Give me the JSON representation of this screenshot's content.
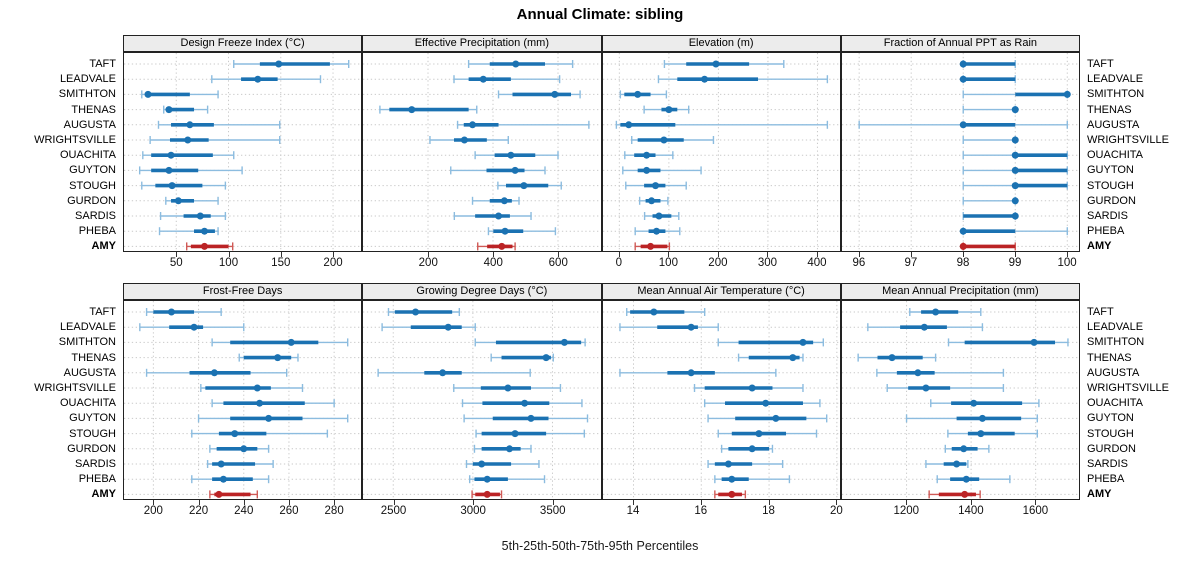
{
  "title": "Annual Climate: sibling",
  "footer": "5th-25th-50th-75th-95th Percentiles",
  "stations": [
    "TAFT",
    "LEADVALE",
    "SMITHTON",
    "THENAS",
    "AUGUSTA",
    "WRIGHTSVILLE",
    "OUACHITA",
    "GUYTON",
    "STOUGH",
    "GURDON",
    "SARDIS",
    "PHEBA",
    "AMY"
  ],
  "highlight_station": "AMY",
  "percentile_labels": [
    "5th",
    "25th",
    "50th",
    "75th",
    "95th"
  ],
  "colors": {
    "series_main": "#1b72b2",
    "series_whisker": "#8cbcdf",
    "highlight_main": "#bb2325",
    "highlight_whisker": "#d05a56",
    "strip_bg": "#ececec",
    "grid_line": "#c9c9c9",
    "panel_border": "#222222"
  },
  "chart_data": [
    {
      "type": "interval-dotplot",
      "title": "Design Freeze Index (°C)",
      "xlim": [
        0,
        227
      ],
      "ticks": [
        50,
        100,
        150,
        200
      ],
      "grid": "dotted",
      "values": {
        "TAFT": [
          105,
          130,
          148,
          197,
          215
        ],
        "LEADVALE": [
          84,
          112,
          128,
          147,
          188
        ],
        "SMITHTON": [
          17,
          20,
          23,
          63,
          90
        ],
        "THENAS": [
          38,
          41,
          43,
          67,
          80
        ],
        "AUGUSTA": [
          33,
          45,
          63,
          86,
          149
        ],
        "WRIGHTSVILLE": [
          25,
          44,
          61,
          81,
          149
        ],
        "OUACHITA": [
          18,
          26,
          45,
          85,
          105
        ],
        "GUYTON": [
          15,
          26,
          43,
          71,
          113
        ],
        "STOUGH": [
          17,
          30,
          46,
          75,
          97
        ],
        "GURDON": [
          40,
          45,
          52,
          67,
          90
        ],
        "SARDIS": [
          35,
          57,
          73,
          83,
          97
        ],
        "PHEBA": [
          34,
          67,
          77,
          87,
          90
        ],
        "AMY": [
          60,
          64,
          77,
          100,
          104
        ]
      }
    },
    {
      "type": "interval-dotplot",
      "title": "Effective Precipitation (mm)",
      "xlim": [
        0,
        730
      ],
      "ticks": [
        200,
        400,
        600
      ],
      "grid": "dotted",
      "values": {
        "TAFT": [
          325,
          390,
          470,
          560,
          645
        ],
        "LEADVALE": [
          280,
          325,
          370,
          455,
          605
        ],
        "SMITHTON": [
          417,
          460,
          590,
          640,
          668
        ],
        "THENAS": [
          52,
          81,
          150,
          325,
          350
        ],
        "AUGUSTA": [
          291,
          310,
          337,
          417,
          695
        ],
        "WRIGHTSVILLE": [
          206,
          280,
          312,
          381,
          447
        ],
        "OUACHITA": [
          345,
          405,
          455,
          530,
          600
        ],
        "GUYTON": [
          270,
          380,
          468,
          497,
          560
        ],
        "STOUGH": [
          415,
          440,
          495,
          570,
          610
        ],
        "GURDON": [
          337,
          390,
          435,
          458,
          480
        ],
        "SARDIS": [
          281,
          345,
          417,
          452,
          517
        ],
        "PHEBA": [
          386,
          401,
          437,
          493,
          592
        ],
        "AMY": [
          353,
          382,
          427,
          460,
          468
        ]
      }
    },
    {
      "type": "interval-dotplot",
      "title": "Elevation (m)",
      "xlim": [
        -33,
        446
      ],
      "ticks": [
        0,
        100,
        200,
        300,
        400
      ],
      "grid": "dotted",
      "values": {
        "TAFT": [
          91,
          135,
          195,
          262,
          332
        ],
        "LEADVALE": [
          79,
          117,
          172,
          280,
          420
        ],
        "SMITHTON": [
          2,
          10,
          37,
          63,
          95
        ],
        "THENAS": [
          50,
          85,
          100,
          117,
          140
        ],
        "AUGUSTA": [
          -6,
          2,
          19,
          113,
          420
        ],
        "WRIGHTSVILLE": [
          25,
          37,
          90,
          130,
          190
        ],
        "OUACHITA": [
          11,
          30,
          55,
          73,
          108
        ],
        "GUYTON": [
          7,
          37,
          55,
          83,
          165
        ],
        "STOUGH": [
          13,
          50,
          73,
          93,
          135
        ],
        "GURDON": [
          41,
          53,
          65,
          83,
          98
        ],
        "SARDIS": [
          51,
          67,
          80,
          105,
          120
        ],
        "PHEBA": [
          32,
          59,
          75,
          93,
          122
        ],
        "AMY": [
          32,
          43,
          63,
          97,
          101
        ]
      }
    },
    {
      "type": "interval-dotplot",
      "title": "Fraction of Annual PPT as Rain",
      "xlim": [
        95.67,
        100.23
      ],
      "ticks": [
        96,
        97,
        98,
        99,
        100
      ],
      "grid": "dotted",
      "values": {
        "TAFT": [
          98,
          98,
          98,
          99,
          99
        ],
        "LEADVALE": [
          98,
          98,
          98,
          99,
          99
        ],
        "SMITHTON": [
          98,
          99,
          100,
          100,
          100
        ],
        "THENAS": [
          98,
          99,
          99,
          99,
          99
        ],
        "AUGUSTA": [
          96,
          98,
          98,
          99,
          100
        ],
        "WRIGHTSVILLE": [
          98,
          99,
          99,
          99,
          99
        ],
        "OUACHITA": [
          98,
          99,
          99,
          100,
          100
        ],
        "GUYTON": [
          98,
          99,
          99,
          100,
          100
        ],
        "STOUGH": [
          98,
          99,
          99,
          100,
          100
        ],
        "GURDON": [
          98,
          99,
          99,
          99,
          99
        ],
        "SARDIS": [
          98,
          98,
          99,
          99,
          99
        ],
        "PHEBA": [
          98,
          98,
          98,
          99,
          100
        ],
        "AMY": [
          98,
          98,
          98,
          99,
          99
        ]
      }
    },
    {
      "type": "interval-dotplot",
      "title": "Frost-Free Days",
      "xlim": [
        187,
        292
      ],
      "ticks": [
        200,
        220,
        240,
        260,
        280
      ],
      "grid": "dotted",
      "values": {
        "TAFT": [
          197,
          200,
          208,
          218,
          230
        ],
        "LEADVALE": [
          194,
          207,
          218,
          222,
          240
        ],
        "SMITHTON": [
          226,
          234,
          261,
          273,
          286
        ],
        "THENAS": [
          238,
          240,
          255,
          261,
          264
        ],
        "AUGUSTA": [
          197,
          216,
          227,
          243,
          259
        ],
        "WRIGHTSVILLE": [
          221,
          223,
          246,
          252,
          266
        ],
        "OUACHITA": [
          226,
          231,
          247,
          267,
          280
        ],
        "GUYTON": [
          220,
          234,
          251,
          266,
          286
        ],
        "STOUGH": [
          217,
          229,
          236,
          250,
          277
        ],
        "GURDON": [
          225,
          228,
          240,
          246,
          251
        ],
        "SARDIS": [
          224,
          226,
          230,
          245,
          253
        ],
        "PHEBA": [
          217,
          226,
          231,
          244,
          251
        ],
        "AMY": [
          225,
          227,
          229,
          243,
          246
        ]
      }
    },
    {
      "type": "interval-dotplot",
      "title": "Growing Degree Days (°C)",
      "xlim": [
        2310,
        3800
      ],
      "ticks": [
        2500,
        3000,
        3500
      ],
      "grid": "dotted",
      "values": {
        "TAFT": [
          2470,
          2510,
          2640,
          2870,
          2915
        ],
        "LEADVALE": [
          2430,
          2610,
          2845,
          2930,
          3015
        ],
        "SMITHTON": [
          3015,
          3145,
          3575,
          3680,
          3705
        ],
        "THENAS": [
          3115,
          3180,
          3460,
          3490,
          3505
        ],
        "AUGUSTA": [
          2405,
          2695,
          2810,
          2930,
          3360
        ],
        "WRIGHTSVILLE": [
          2880,
          3050,
          3220,
          3365,
          3550
        ],
        "OUACHITA": [
          2935,
          3060,
          3325,
          3480,
          3685
        ],
        "GUYTON": [
          2945,
          3125,
          3365,
          3475,
          3720
        ],
        "STOUGH": [
          3020,
          3055,
          3265,
          3460,
          3700
        ],
        "GURDON": [
          3010,
          3055,
          3230,
          3300,
          3365
        ],
        "SARDIS": [
          2960,
          3000,
          3055,
          3240,
          3415
        ],
        "PHEBA": [
          2980,
          3010,
          3090,
          3220,
          3450
        ],
        "AMY": [
          2995,
          3015,
          3090,
          3170,
          3180
        ]
      }
    },
    {
      "type": "interval-dotplot",
      "title": "Mean Annual Air Temperature (°C)",
      "xlim": [
        13.1,
        20.1
      ],
      "ticks": [
        14,
        16,
        18,
        20
      ],
      "grid": "dotted",
      "values": {
        "TAFT": [
          13.8,
          13.9,
          14.6,
          15.5,
          16.1
        ],
        "LEADVALE": [
          13.6,
          14.7,
          15.7,
          15.9,
          16.5
        ],
        "SMITHTON": [
          16.5,
          17.1,
          19.0,
          19.3,
          19.6
        ],
        "THENAS": [
          17.1,
          17.4,
          18.7,
          18.9,
          19.0
        ],
        "AUGUSTA": [
          13.6,
          15.0,
          15.7,
          16.4,
          18.2
        ],
        "WRIGHTSVILLE": [
          15.8,
          16.1,
          17.5,
          18.1,
          19.0
        ],
        "OUACHITA": [
          16.1,
          16.7,
          17.9,
          19.0,
          19.5
        ],
        "GUYTON": [
          16.2,
          17.0,
          18.2,
          19.1,
          19.7
        ],
        "STOUGH": [
          16.5,
          16.9,
          17.7,
          18.5,
          19.4
        ],
        "GURDON": [
          16.6,
          16.8,
          17.5,
          18.0,
          18.1
        ],
        "SARDIS": [
          16.2,
          16.4,
          16.8,
          17.5,
          18.4
        ],
        "PHEBA": [
          16.4,
          16.6,
          16.9,
          17.4,
          18.6
        ],
        "AMY": [
          16.4,
          16.5,
          16.9,
          17.2,
          17.3
        ]
      }
    },
    {
      "type": "interval-dotplot",
      "title": "Mean Annual Precipitation (mm)",
      "xlim": [
        1000,
        1735
      ],
      "ticks": [
        1200,
        1400,
        1600
      ],
      "grid": "dotted",
      "values": {
        "TAFT": [
          1210,
          1245,
          1290,
          1360,
          1430
        ],
        "LEADVALE": [
          1080,
          1180,
          1255,
          1325,
          1435
        ],
        "SMITHTON": [
          1330,
          1380,
          1595,
          1660,
          1700
        ],
        "THENAS": [
          1050,
          1110,
          1155,
          1250,
          1290
        ],
        "AUGUSTA": [
          1108,
          1170,
          1235,
          1287,
          1500
        ],
        "WRIGHTSVILLE": [
          1140,
          1205,
          1260,
          1335,
          1500
        ],
        "OUACHITA": [
          1275,
          1338,
          1408,
          1558,
          1610
        ],
        "GUYTON": [
          1200,
          1355,
          1435,
          1555,
          1605
        ],
        "STOUGH": [
          1328,
          1390,
          1430,
          1535,
          1605
        ],
        "GURDON": [
          1320,
          1340,
          1377,
          1420,
          1455
        ],
        "SARDIS": [
          1260,
          1315,
          1355,
          1385,
          1390
        ],
        "PHEBA": [
          1295,
          1335,
          1385,
          1425,
          1520
        ],
        "AMY": [
          1270,
          1300,
          1380,
          1415,
          1428
        ]
      }
    }
  ]
}
